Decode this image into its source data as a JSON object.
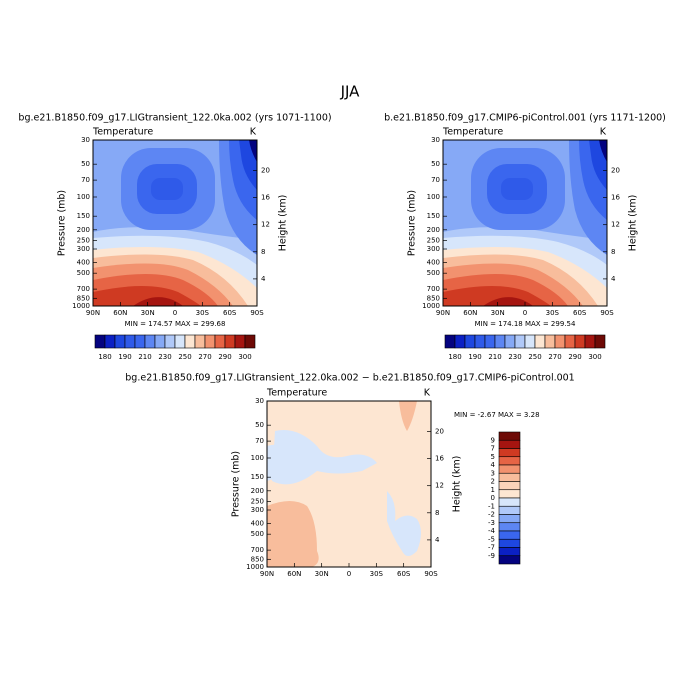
{
  "title": "JJA",
  "chart_data": [
    {
      "type": "contour",
      "title": "bg.e21.B1850.f09_g17.LIGtransient_122.0ka.002 (yrs 1071-1100)",
      "subtitle": "Temperature",
      "units": "K",
      "ylabel": "Pressure (mb)",
      "y2label": "Height (km)",
      "xlim": [
        90,
        -90
      ],
      "xticks": [
        {
          "value": 90,
          "label": "90N"
        },
        {
          "value": 60,
          "label": "60N"
        },
        {
          "value": 30,
          "label": "30N"
        },
        0,
        {
          "value": -30,
          "label": "30S"
        },
        {
          "value": -60,
          "label": "60S"
        },
        {
          "value": -90,
          "label": "90S"
        }
      ],
      "ylim": [
        1000,
        30
      ],
      "ylog": true,
      "yticks": [
        30,
        50,
        70,
        100,
        150,
        200,
        250,
        300,
        400,
        500,
        700,
        850,
        1000
      ],
      "y2lim": [
        0,
        24.5
      ],
      "y2ticks": [
        4,
        8,
        12,
        16,
        20
      ],
      "stats": "MIN = 174.57   MAX = 299.68",
      "colorbar": {
        "orientation": "horizontal",
        "colors": [
          "#04037f",
          "#0b20c4",
          "#1e47e0",
          "#2f5ae9",
          "#3a66ee",
          "#5d86f3",
          "#86a9f6",
          "#b0c9f9",
          "#d7e6fb",
          "#fde6d2",
          "#f8bd9c",
          "#f2926f",
          "#e66445",
          "#cf3a22",
          "#a51510",
          "#6e0a06"
        ],
        "ticks": [
          180,
          190,
          210,
          230,
          250,
          270,
          290,
          300
        ]
      }
    },
    {
      "type": "contour",
      "title": "b.e21.B1850.f09_g17.CMIP6-piControl.001 (yrs 1171-1200)",
      "subtitle": "Temperature",
      "units": "K",
      "ylabel": "Pressure (mb)",
      "y2label": "Height (km)",
      "xlim": [
        90,
        -90
      ],
      "xticks": [
        {
          "value": 90,
          "label": "90N"
        },
        {
          "value": 60,
          "label": "60N"
        },
        {
          "value": 30,
          "label": "30N"
        },
        0,
        {
          "value": -30,
          "label": "30S"
        },
        {
          "value": -60,
          "label": "60S"
        },
        {
          "value": -90,
          "label": "90S"
        }
      ],
      "ylim": [
        1000,
        30
      ],
      "ylog": true,
      "yticks": [
        30,
        50,
        70,
        100,
        150,
        200,
        250,
        300,
        400,
        500,
        700,
        850,
        1000
      ],
      "y2lim": [
        0,
        24.5
      ],
      "y2ticks": [
        4,
        8,
        12,
        16,
        20
      ],
      "stats": "MIN = 174.18   MAX = 299.54",
      "colorbar": {
        "orientation": "horizontal",
        "colors": [
          "#04037f",
          "#0b20c4",
          "#1e47e0",
          "#2f5ae9",
          "#3a66ee",
          "#5d86f3",
          "#86a9f6",
          "#b0c9f9",
          "#d7e6fb",
          "#fde6d2",
          "#f8bd9c",
          "#f2926f",
          "#e66445",
          "#cf3a22",
          "#a51510",
          "#6e0a06"
        ],
        "ticks": [
          180,
          190,
          210,
          230,
          250,
          270,
          290,
          300
        ]
      }
    },
    {
      "type": "contour",
      "title": "bg.e21.B1850.f09_g17.LIGtransient_122.0ka.002 − b.e21.B1850.f09_g17.CMIP6-piControl.001",
      "subtitle": "Temperature",
      "units": "K",
      "ylabel": "Pressure (mb)",
      "y2label": "Height (km)",
      "xlim": [
        90,
        -90
      ],
      "xticks": [
        {
          "value": 90,
          "label": "90N"
        },
        {
          "value": 60,
          "label": "60N"
        },
        {
          "value": 30,
          "label": "30N"
        },
        0,
        {
          "value": -30,
          "label": "30S"
        },
        {
          "value": -60,
          "label": "60S"
        },
        {
          "value": -90,
          "label": "90S"
        }
      ],
      "ylim": [
        1000,
        30
      ],
      "ylog": true,
      "yticks": [
        30,
        50,
        70,
        100,
        150,
        200,
        250,
        300,
        400,
        500,
        700,
        850,
        1000
      ],
      "y2lim": [
        0,
        24.5
      ],
      "y2ticks": [
        4,
        8,
        12,
        16,
        20
      ],
      "stats": "MIN =  -2.67   MAX =   3.28",
      "colorbar": {
        "orientation": "vertical",
        "colors": [
          "#6e0a06",
          "#a51510",
          "#cf3a22",
          "#e66445",
          "#f2926f",
          "#f8bd9c",
          "#fad2b9",
          "#fde6d2",
          "#d7e6fb",
          "#b0c9f9",
          "#86a9f6",
          "#5d86f3",
          "#3a66ee",
          "#1e47e0",
          "#0b20c4",
          "#04037f"
        ],
        "ticks": [
          9,
          7,
          5,
          4,
          3,
          2,
          1,
          0,
          -1,
          -2,
          -3,
          -4,
          -5,
          -7,
          -9
        ]
      }
    }
  ]
}
